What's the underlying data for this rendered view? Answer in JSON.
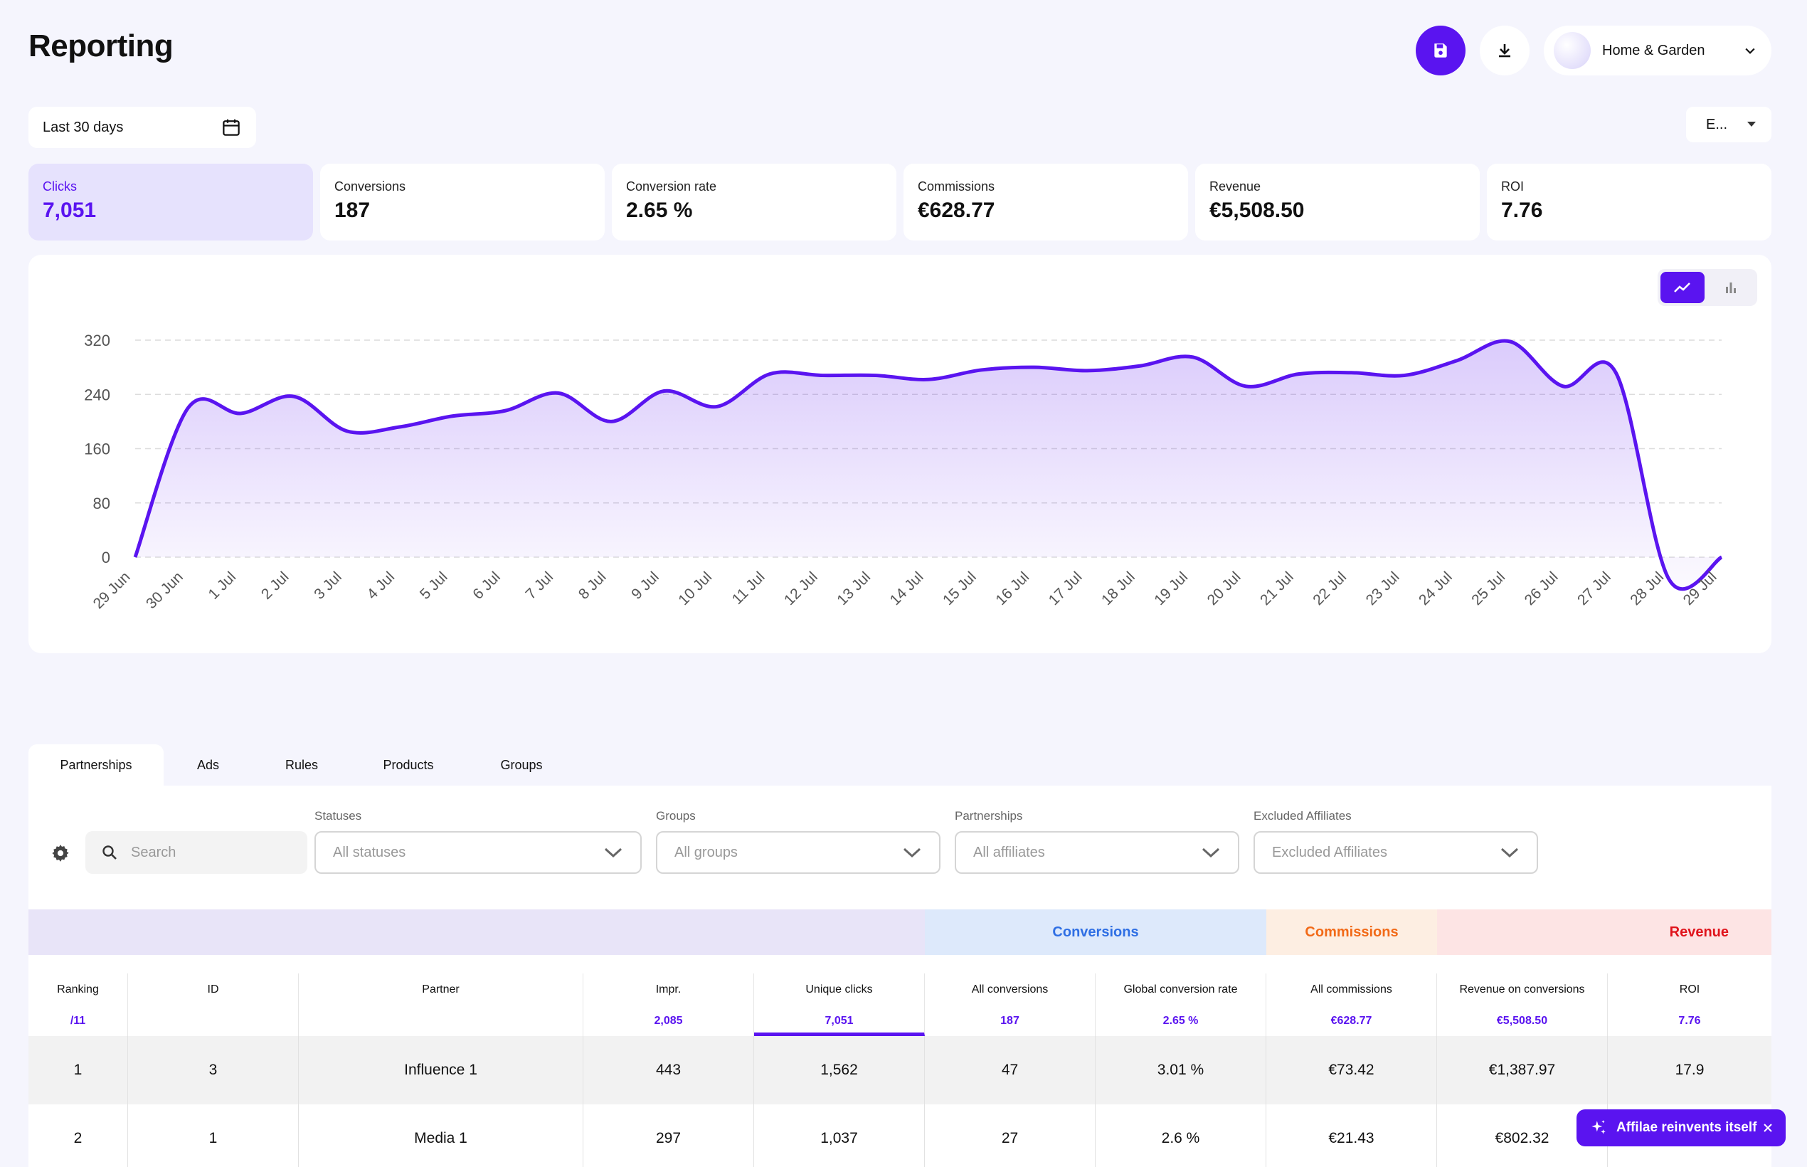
{
  "header": {
    "title": "Reporting",
    "account": "Home & Garden"
  },
  "date_picker": {
    "label": "Last 30 days"
  },
  "view_select": {
    "label": "E..."
  },
  "kpis": [
    {
      "label": "Clicks",
      "value": "7,051"
    },
    {
      "label": "Conversions",
      "value": "187"
    },
    {
      "label": "Conversion rate",
      "value": "2.65 %"
    },
    {
      "label": "Commissions",
      "value": "€628.77"
    },
    {
      "label": "Revenue",
      "value": "€5,508.50"
    },
    {
      "label": "ROI",
      "value": "7.76"
    }
  ],
  "chart_toggle": {
    "active": "line",
    "options": [
      "line-chart-icon",
      "bar-chart-icon"
    ]
  },
  "chart_data": {
    "type": "area",
    "title": "",
    "xlabel": "",
    "ylabel": "",
    "ylim": [
      0,
      320
    ],
    "yticks": [
      "320",
      "240",
      "160",
      "80",
      "0"
    ],
    "grid": true,
    "color": "#5a14f0",
    "categories": [
      "29 Jun",
      "30 Jun",
      "1 Jul",
      "2 Jul",
      "3 Jul",
      "4 Jul",
      "5 Jul",
      "6 Jul",
      "7 Jul",
      "8 Jul",
      "9 Jul",
      "10 Jul",
      "11 Jul",
      "12 Jul",
      "13 Jul",
      "14 Jul",
      "15 Jul",
      "16 Jul",
      "17 Jul",
      "18 Jul",
      "19 Jul",
      "20 Jul",
      "21 Jul",
      "22 Jul",
      "23 Jul",
      "24 Jul",
      "25 Jul",
      "26 Jul",
      "27 Jul",
      "28 Jul",
      "29 Jul"
    ],
    "values": [
      0,
      220,
      212,
      237,
      186,
      192,
      208,
      216,
      242,
      200,
      245,
      222,
      270,
      268,
      268,
      262,
      276,
      280,
      275,
      282,
      295,
      252,
      270,
      272,
      268,
      290,
      318,
      252,
      272,
      -32,
      0
    ]
  },
  "tabs": [
    {
      "label": "Partnerships",
      "active": true
    },
    {
      "label": "Ads",
      "active": false
    },
    {
      "label": "Rules",
      "active": false
    },
    {
      "label": "Products",
      "active": false
    },
    {
      "label": "Groups",
      "active": false
    }
  ],
  "filters": {
    "search_placeholder": "Search",
    "statuses": {
      "label": "Statuses",
      "value": "All statuses"
    },
    "groups": {
      "label": "Groups",
      "value": "All groups"
    },
    "partnerships": {
      "label": "Partnerships",
      "value": "All affiliates"
    },
    "excluded": {
      "label": "Excluded Affiliates",
      "value": "Excluded Affiliates"
    }
  },
  "table": {
    "groups": [
      {
        "label": "",
        "bg": "#e8e4f8",
        "color": "#111"
      },
      {
        "label": "Conversions",
        "bg": "#dde9fb",
        "color": "#2f6fe4"
      },
      {
        "label": "Commissions",
        "bg": "#fdeee2",
        "color": "#f26a18"
      },
      {
        "label": "Revenue",
        "bg": "#fde4e4",
        "color": "#e0141c"
      }
    ],
    "columns": [
      {
        "label": "Ranking",
        "total": "/11"
      },
      {
        "label": "ID",
        "total": ""
      },
      {
        "label": "Partner",
        "total": ""
      },
      {
        "label": "Impr.",
        "total": "2,085"
      },
      {
        "label": "Unique clicks",
        "total": "7,051"
      },
      {
        "label": "All conversions",
        "total": "187"
      },
      {
        "label": "Global conversion rate",
        "total": "2.65 %"
      },
      {
        "label": "All commissions",
        "total": "€628.77"
      },
      {
        "label": "Revenue on conversions",
        "total": "€5,508.50"
      },
      {
        "label": "ROI",
        "total": "7.76"
      }
    ],
    "rows": [
      [
        "1",
        "3",
        "Influence 1",
        "443",
        "1,562",
        "47",
        "3.01 %",
        "€73.42",
        "€1,387.97",
        "17.9"
      ],
      [
        "2",
        "1",
        "Media 1",
        "297",
        "1,037",
        "27",
        "2.6 %",
        "€21.43",
        "€802.32",
        ""
      ]
    ]
  },
  "toast": {
    "label": "Affilae reinvents itself"
  }
}
